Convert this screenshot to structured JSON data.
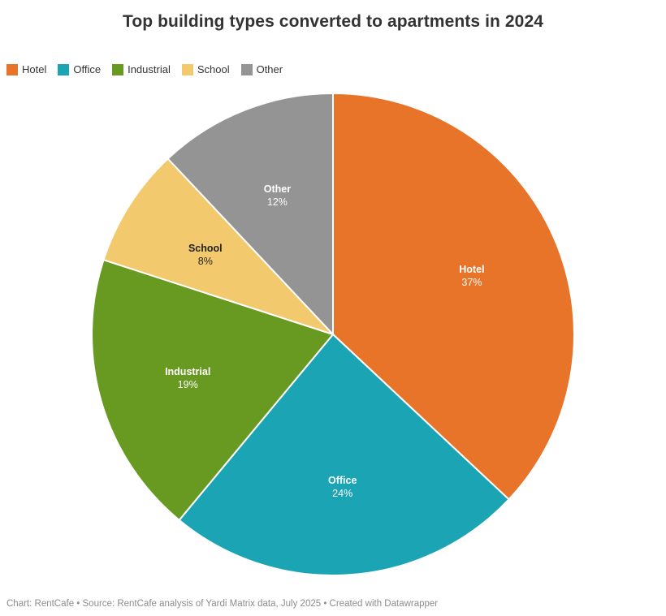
{
  "title": "Top building types converted to apartments in 2024",
  "legend": {
    "position": "top-left",
    "items": [
      {
        "label": "Hotel",
        "color": "#E8742A"
      },
      {
        "label": "Office",
        "color": "#1AA4B4"
      },
      {
        "label": "Industrial",
        "color": "#689A22"
      },
      {
        "label": "School",
        "color": "#F2C96D"
      },
      {
        "label": "Other",
        "color": "#949494"
      }
    ]
  },
  "chart_data": {
    "type": "pie",
    "title": "Top building types converted to apartments in 2024",
    "categories": [
      "Hotel",
      "Office",
      "Industrial",
      "School",
      "Other"
    ],
    "values": [
      37,
      24,
      19,
      8,
      12
    ],
    "unit": "%",
    "colors": [
      "#E8742A",
      "#1AA4B4",
      "#689A22",
      "#F2C96D",
      "#949494"
    ],
    "label_colors": [
      "#ffffff",
      "#ffffff",
      "#ffffff",
      "#222222",
      "#ffffff"
    ],
    "slice_labels": [
      "Hotel 37%",
      "Office 24%",
      "Industrial 19%",
      "School 8%",
      "Other 12%"
    ],
    "start_angle_deg": 0,
    "direction": "clockwise",
    "border_color": "#ffffff",
    "legend_position": "top-left"
  },
  "footer": {
    "text": "Chart: RentCafe • Source: RentCafe analysis of Yardi Matrix data, July 2025  • Created with Datawrapper"
  }
}
